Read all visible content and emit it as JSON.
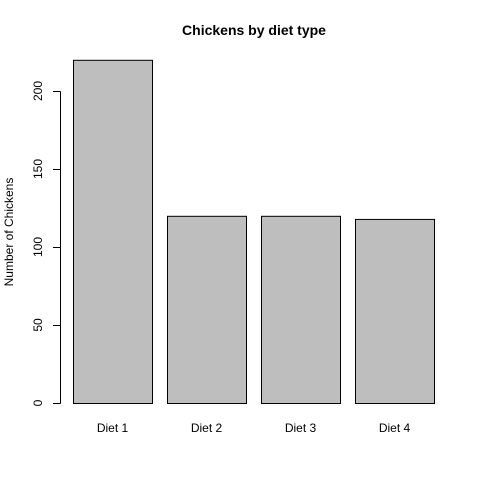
{
  "chart_data": {
    "type": "bar",
    "title": "Chickens by diet type",
    "xlabel": "",
    "ylabel": "Number of Chickens",
    "categories": [
      "Diet 1",
      "Diet 2",
      "Diet 3",
      "Diet 4"
    ],
    "values": [
      220,
      120,
      120,
      118
    ],
    "ylim": [
      0,
      220
    ],
    "yticks": [
      0,
      50,
      100,
      150,
      200
    ],
    "grid": false,
    "colors": {
      "bar_fill": "#bebebe",
      "bar_stroke": "#000000",
      "axis": "#000000"
    }
  }
}
